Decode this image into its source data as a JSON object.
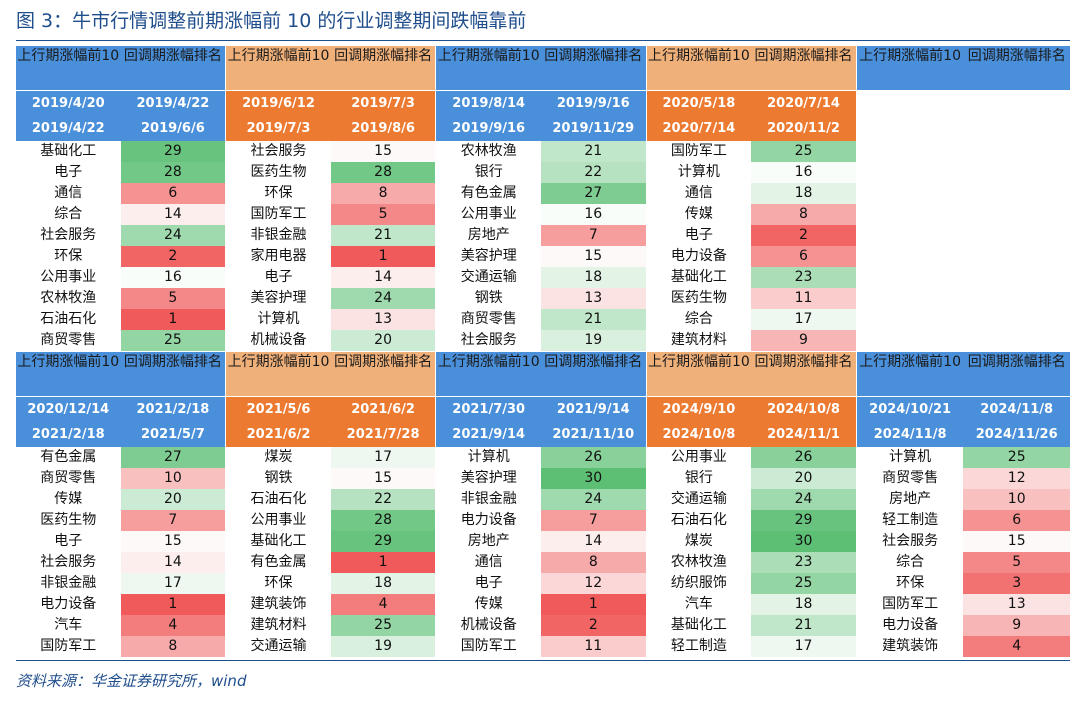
{
  "title": "图 3：牛市行情调整前期涨幅前 10 的行业调整期间跌幅靠前",
  "source": "资料来源：华金证券研究所，wind",
  "header": {
    "col1": "上行期涨幅前10",
    "col2": "回调期涨幅排名"
  },
  "colors": {
    "blue_header": "#4a8fd9",
    "orange_header": "#f0b07a",
    "orange_dates": "#ec7a30",
    "green_high": "#5cbf74",
    "red_low": "#f05a5a",
    "neutral": "#ffffff"
  },
  "bands": [
    [
      {
        "theme": "blue",
        "d1": [
          "2019/4/20",
          "2019/4/22"
        ],
        "d2": [
          "2019/4/22",
          "2019/6/6"
        ],
        "rows": [
          [
            "基础化工",
            29
          ],
          [
            "电子",
            28
          ],
          [
            "通信",
            6
          ],
          [
            "综合",
            14
          ],
          [
            "社会服务",
            24
          ],
          [
            "环保",
            2
          ],
          [
            "公用事业",
            16
          ],
          [
            "农林牧渔",
            5
          ],
          [
            "石油石化",
            1
          ],
          [
            "商贸零售",
            25
          ]
        ]
      },
      {
        "theme": "orange",
        "d1": [
          "2019/6/12",
          "2019/7/3"
        ],
        "d2": [
          "2019/7/3",
          "2019/8/6"
        ],
        "rows": [
          [
            "社会服务",
            15
          ],
          [
            "医药生物",
            28
          ],
          [
            "环保",
            8
          ],
          [
            "国防军工",
            5
          ],
          [
            "非银金融",
            21
          ],
          [
            "家用电器",
            1
          ],
          [
            "电子",
            14
          ],
          [
            "美容护理",
            24
          ],
          [
            "计算机",
            13
          ],
          [
            "机械设备",
            20
          ]
        ]
      },
      {
        "theme": "blue",
        "d1": [
          "2019/8/14",
          "2019/9/16"
        ],
        "d2": [
          "2019/9/16",
          "2019/11/29"
        ],
        "rows": [
          [
            "农林牧渔",
            21
          ],
          [
            "银行",
            22
          ],
          [
            "有色金属",
            27
          ],
          [
            "公用事业",
            16
          ],
          [
            "房地产",
            7
          ],
          [
            "美容护理",
            15
          ],
          [
            "交通运输",
            18
          ],
          [
            "钢铁",
            13
          ],
          [
            "商贸零售",
            21
          ],
          [
            "社会服务",
            19
          ]
        ]
      },
      {
        "theme": "orange",
        "d1": [
          "2020/5/18",
          "2020/7/14"
        ],
        "d2": [
          "2020/7/14",
          "2020/11/2"
        ],
        "rows": [
          [
            "国防军工",
            25
          ],
          [
            "计算机",
            16
          ],
          [
            "通信",
            18
          ],
          [
            "传媒",
            8
          ],
          [
            "电子",
            2
          ],
          [
            "电力设备",
            6
          ],
          [
            "基础化工",
            23
          ],
          [
            "医药生物",
            11
          ],
          [
            "综合",
            17
          ],
          [
            "建筑材料",
            9
          ]
        ]
      },
      {
        "theme": "blue",
        "empty": true
      }
    ],
    [
      {
        "theme": "blue",
        "d1": [
          "2020/12/14",
          "2021/2/18"
        ],
        "d2": [
          "2021/2/18",
          "2021/5/7"
        ],
        "rows": [
          [
            "有色金属",
            27
          ],
          [
            "商贸零售",
            10
          ],
          [
            "传媒",
            20
          ],
          [
            "医药生物",
            7
          ],
          [
            "电子",
            15
          ],
          [
            "社会服务",
            14
          ],
          [
            "非银金融",
            17
          ],
          [
            "电力设备",
            1
          ],
          [
            "汽车",
            4
          ],
          [
            "国防军工",
            8
          ]
        ]
      },
      {
        "theme": "orange",
        "d1": [
          "2021/5/6",
          "2021/6/2"
        ],
        "d2": [
          "2021/6/2",
          "2021/7/28"
        ],
        "rows": [
          [
            "煤炭",
            17
          ],
          [
            "钢铁",
            15
          ],
          [
            "石油石化",
            22
          ],
          [
            "公用事业",
            28
          ],
          [
            "基础化工",
            29
          ],
          [
            "有色金属",
            1
          ],
          [
            "环保",
            18
          ],
          [
            "建筑装饰",
            4
          ],
          [
            "建筑材料",
            25
          ],
          [
            "交通运输",
            19
          ]
        ]
      },
      {
        "theme": "blue",
        "d1": [
          "2021/7/30",
          "2021/9/14"
        ],
        "d2": [
          "2021/9/14",
          "2021/11/10"
        ],
        "rows": [
          [
            "计算机",
            26
          ],
          [
            "美容护理",
            30
          ],
          [
            "非银金融",
            24
          ],
          [
            "电力设备",
            7
          ],
          [
            "房地产",
            14
          ],
          [
            "通信",
            8
          ],
          [
            "电子",
            12
          ],
          [
            "传媒",
            1
          ],
          [
            "机械设备",
            2
          ],
          [
            "国防军工",
            11
          ]
        ]
      },
      {
        "theme": "orange",
        "d1": [
          "2024/9/10",
          "2024/10/8"
        ],
        "d2": [
          "2024/10/8",
          "2024/11/1"
        ],
        "rows": [
          [
            "公用事业",
            26
          ],
          [
            "银行",
            20
          ],
          [
            "交通运输",
            24
          ],
          [
            "石油石化",
            29
          ],
          [
            "煤炭",
            30
          ],
          [
            "农林牧渔",
            23
          ],
          [
            "纺织服饰",
            25
          ],
          [
            "汽车",
            18
          ],
          [
            "基础化工",
            21
          ],
          [
            "轻工制造",
            17
          ]
        ]
      },
      {
        "theme": "blue",
        "d1": [
          "2024/10/21",
          "2024/11/8"
        ],
        "d2": [
          "2024/11/8",
          "2024/11/26"
        ],
        "rows": [
          [
            "计算机",
            25
          ],
          [
            "商贸零售",
            12
          ],
          [
            "房地产",
            10
          ],
          [
            "轻工制造",
            6
          ],
          [
            "社会服务",
            15
          ],
          [
            "综合",
            5
          ],
          [
            "环保",
            3
          ],
          [
            "国防军工",
            13
          ],
          [
            "电力设备",
            9
          ],
          [
            "建筑装饰",
            4
          ]
        ]
      }
    ]
  ]
}
